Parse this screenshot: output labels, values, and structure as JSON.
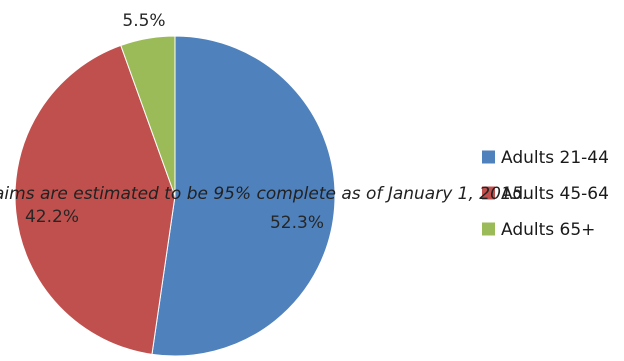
{
  "chart_data": {
    "type": "pie",
    "title": "",
    "categories": [
      "Adults 21-44",
      "Adults 45-64",
      "Adults 65+"
    ],
    "values": [
      52.3,
      42.2,
      5.5
    ],
    "value_labels": [
      "52.3%",
      "42.2%",
      "5.5%"
    ],
    "unit": "%",
    "colors": [
      "#4F81BD",
      "#C0504D",
      "#9BBB59"
    ],
    "legend": {
      "position": "right",
      "entries": [
        "Adults 21-44",
        "Adults 45-64",
        "Adults 65+"
      ]
    },
    "start_angle_deg": 0,
    "direction": "clockwise",
    "annotations": [
      "aims are estimated to be 95% complete as of January 1, 2015."
    ]
  }
}
